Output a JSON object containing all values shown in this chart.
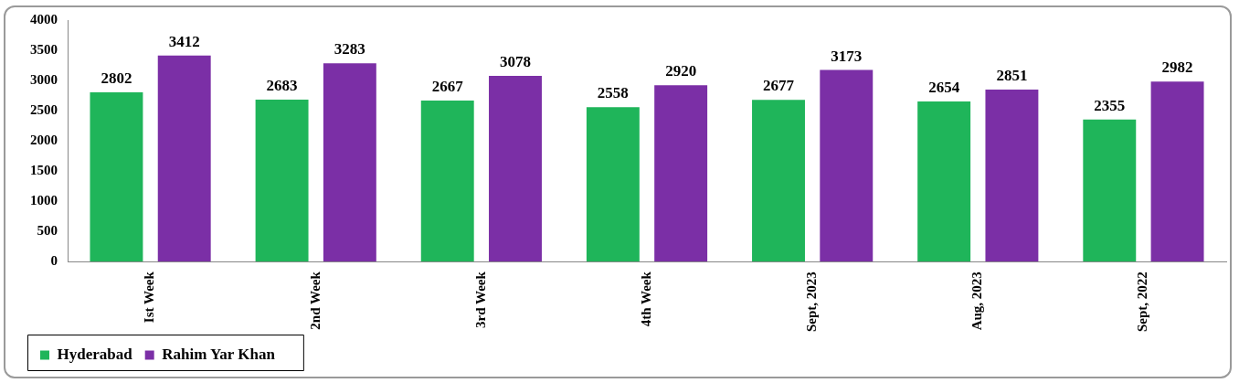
{
  "chart_data": {
    "type": "bar",
    "categories": [
      "Ist Week",
      "2nd Week",
      "3rd Week",
      "4th Week",
      "Sept, 2023",
      "Aug, 2023",
      "Sept, 2022"
    ],
    "series": [
      {
        "name": "Hyderabad",
        "color": "#1fb55a",
        "values": [
          2802,
          2683,
          2667,
          2558,
          2677,
          2654,
          2355
        ]
      },
      {
        "name": "Rahim Yar Khan",
        "color": "#7b2fa6",
        "values": [
          3412,
          3283,
          3078,
          2920,
          3173,
          2851,
          2982
        ]
      }
    ],
    "ylim": [
      0,
      4000
    ],
    "yticks": [
      0,
      500,
      1000,
      1500,
      2000,
      2500,
      3000,
      3500,
      4000
    ],
    "data_labels": true,
    "legend": "bottom left",
    "grid": false
  }
}
